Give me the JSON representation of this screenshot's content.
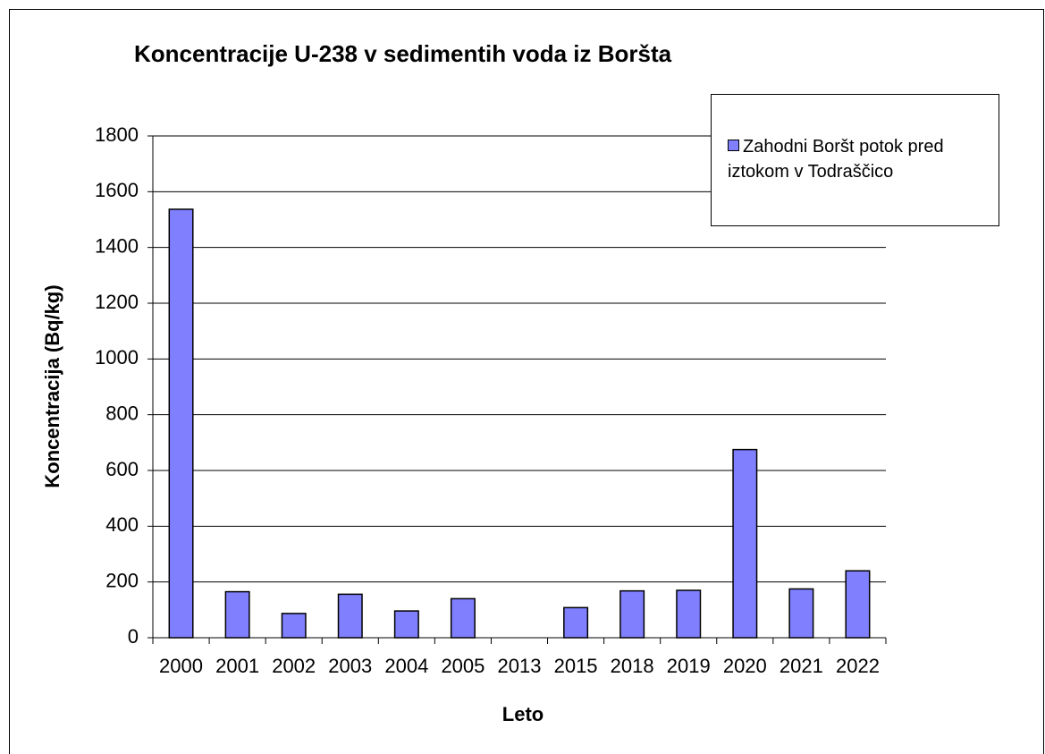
{
  "chart_data": {
    "type": "bar",
    "title": "Koncentracije U-238 v sedimentih voda iz Boršta",
    "x_label": "Leto",
    "y_label": "Koncentracija (Bq/kg)",
    "categories": [
      "2000",
      "2001",
      "2002",
      "2003",
      "2004",
      "2005",
      "2013",
      "2015",
      "2018",
      "2019",
      "2020",
      "2021",
      "2022"
    ],
    "series": [
      {
        "name": "Zahodni Boršt potok pred iztokom v Todraščico",
        "color": "#8080ff",
        "values": [
          1537,
          165,
          87,
          156,
          96,
          140,
          null,
          108,
          168,
          170,
          675,
          175,
          240
        ]
      }
    ],
    "ylim": [
      0,
      1800
    ],
    "yticks": [
      0,
      200,
      400,
      600,
      800,
      1000,
      1200,
      1400,
      1600,
      1800
    ],
    "grid": true,
    "legend": "right"
  }
}
